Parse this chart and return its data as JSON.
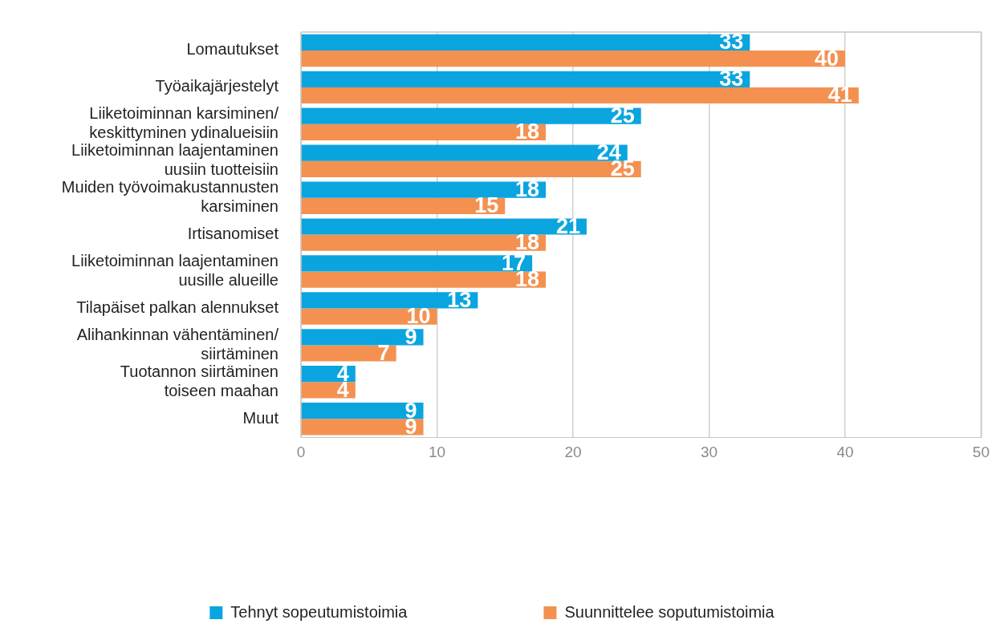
{
  "chart_data": {
    "type": "bar",
    "orientation": "horizontal",
    "categories": [
      "Lomautukset",
      "Työaikajärjestelyt",
      "Liiketoiminnan karsiminen/\nkeskittyminen ydinalueisiin",
      "Liiketoiminnan laajentaminen\nuusiin tuotteisiin",
      "Muiden työvoimakustannusten\nkarsiminen",
      "Irtisanomiset",
      "Liiketoiminnan laajentaminen\nuusille alueille",
      "Tilapäiset palkan alennukset",
      "Alihankinnan vähentäminen/\nsiirtäminen",
      "Tuotannon siirtäminen\ntoiseen maahan",
      "Muut"
    ],
    "series": [
      {
        "name": "Tehnyt sopeutumistoimia",
        "color": "#0aa5df",
        "values": [
          33,
          33,
          25,
          24,
          18,
          21,
          17,
          13,
          9,
          4,
          9
        ]
      },
      {
        "name": "Suunnittelee soputumistoimia",
        "color": "#f49150",
        "values": [
          40,
          41,
          18,
          25,
          15,
          18,
          18,
          10,
          7,
          4,
          9
        ]
      }
    ],
    "xlim": [
      0,
      50
    ],
    "xticks": [
      0,
      10,
      20,
      30,
      40,
      50
    ],
    "grid": "x",
    "legend": "bottom",
    "data_labels": true
  }
}
